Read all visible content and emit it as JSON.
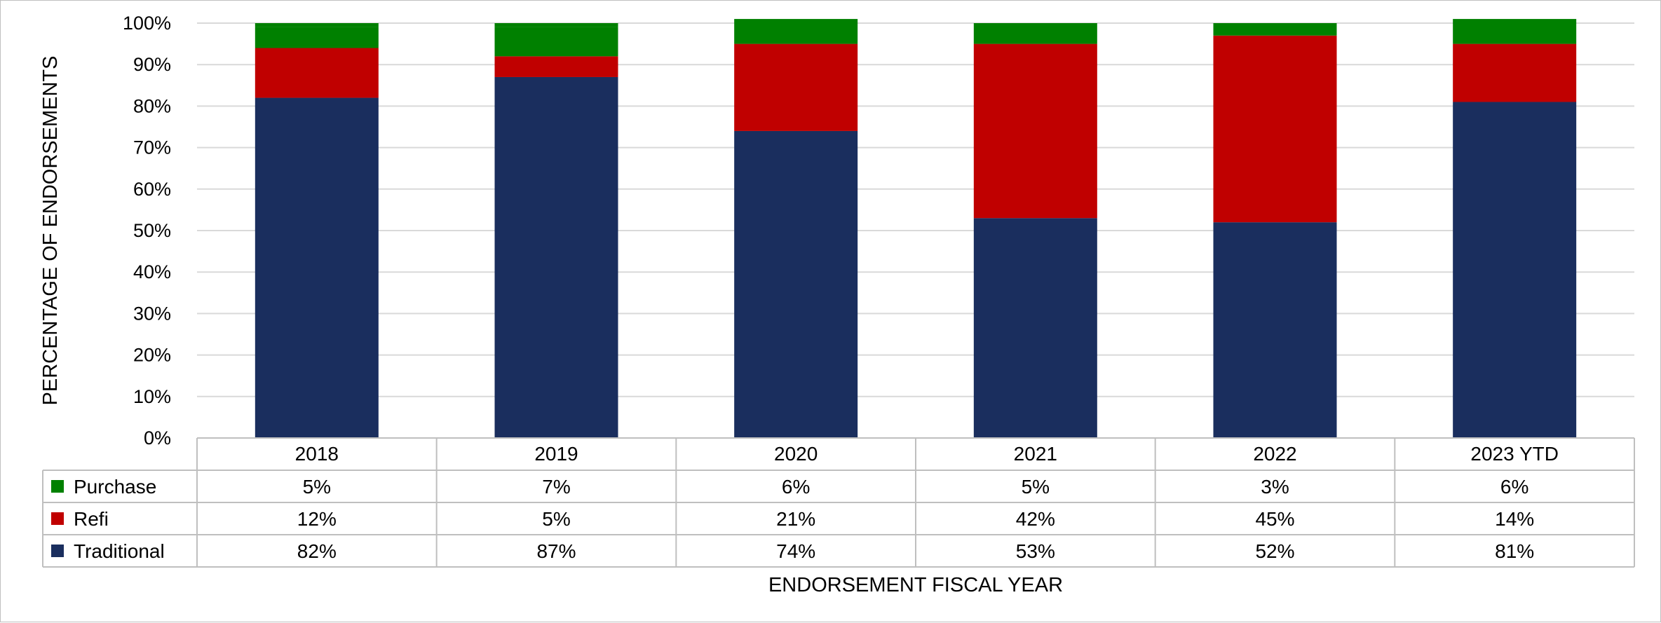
{
  "chart_data": {
    "type": "bar",
    "stacked": true,
    "percent": true,
    "categories": [
      "2018",
      "2019",
      "2020",
      "2021",
      "2022",
      "2023 YTD"
    ],
    "series": [
      {
        "name": "Traditional",
        "color": "#1a2e5e",
        "values": [
          82,
          87,
          74,
          53,
          52,
          81
        ],
        "labels": [
          "82%",
          "87%",
          "74%",
          "53%",
          "52%",
          "81%"
        ]
      },
      {
        "name": "Refi",
        "color": "#c00000",
        "values": [
          12,
          5,
          21,
          42,
          45,
          14
        ],
        "labels": [
          "12%",
          "5%",
          "21%",
          "42%",
          "45%",
          "14%"
        ]
      },
      {
        "name": "Purchase",
        "color": "#008000",
        "values": [
          5,
          7,
          6,
          5,
          3,
          6
        ],
        "labels": [
          "5%",
          "7%",
          "6%",
          "5%",
          "3%",
          "6%"
        ]
      }
    ],
    "table_order": [
      "Purchase",
      "Refi",
      "Traditional"
    ],
    "y_ticks": [
      "0%",
      "10%",
      "20%",
      "30%",
      "40%",
      "50%",
      "60%",
      "70%",
      "80%",
      "90%",
      "100%"
    ],
    "ylim": [
      0,
      100
    ],
    "xlabel": "ENDORSEMENT FISCAL YEAR",
    "ylabel": "PERCENTAGE OF ENDORSEMENTS",
    "grid": true,
    "legend": "data-table"
  }
}
